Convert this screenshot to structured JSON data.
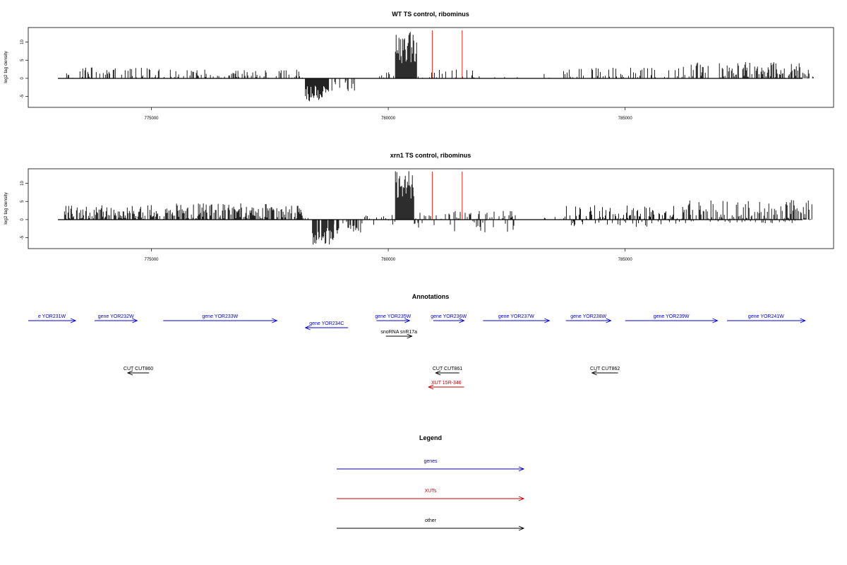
{
  "chart_data": [
    {
      "type": "bar",
      "title": "WT TS control, ribominus",
      "ylabel": "log2 tag density",
      "xlabel": "",
      "xlim": [
        772400,
        789400
      ],
      "ylim": [
        -8,
        14
      ],
      "x_ticks": [
        775000,
        780000,
        785000
      ],
      "x_tick_labels": [
        "775000",
        "780000",
        "785000"
      ],
      "y_ticks": [
        -5,
        0,
        5,
        10
      ],
      "y_tick_labels": [
        "-5",
        "0",
        "5",
        "10"
      ],
      "grid": false,
      "bar_color": "#000000",
      "markers": [
        {
          "x": 780930,
          "color": "#e8463c"
        },
        {
          "x": 781560,
          "color": "#e8463c"
        }
      ],
      "segments": [
        {
          "start": 773150,
          "end": 775500,
          "min": 0,
          "max": 3,
          "density": 0.35,
          "seed": 1
        },
        {
          "start": 775500,
          "end": 777500,
          "min": 0,
          "max": 2.5,
          "density": 0.35,
          "seed": 2
        },
        {
          "start": 777500,
          "end": 778200,
          "min": 0,
          "max": 2.5,
          "density": 0.3,
          "seed": 3
        },
        {
          "start": 778250,
          "end": 778750,
          "min": -6.5,
          "max": -2,
          "density": 0.95,
          "seed": 4
        },
        {
          "start": 778750,
          "end": 779300,
          "min": -3.5,
          "max": -0.5,
          "density": 0.4,
          "seed": 5
        },
        {
          "start": 779800,
          "end": 780150,
          "min": 0,
          "max": 2,
          "density": 0.3,
          "seed": 6
        },
        {
          "start": 780150,
          "end": 780600,
          "min": 4,
          "max": 13.5,
          "density": 1.0,
          "seed": 7
        },
        {
          "start": 780600,
          "end": 781800,
          "min": 0,
          "max": 2.5,
          "density": 0.25,
          "seed": 8
        },
        {
          "start": 781800,
          "end": 783700,
          "min": 0,
          "max": 1.5,
          "density": 0.08,
          "seed": 9
        },
        {
          "start": 783700,
          "end": 786200,
          "min": 0,
          "max": 3,
          "density": 0.35,
          "seed": 10
        },
        {
          "start": 786200,
          "end": 789000,
          "min": 0,
          "max": 4.5,
          "density": 0.6,
          "seed": 11
        }
      ]
    },
    {
      "type": "bar",
      "title": "xrn1 TS control, ribominus",
      "ylabel": "log2 tag density",
      "xlabel": "",
      "xlim": [
        772400,
        789400
      ],
      "ylim": [
        -8,
        14
      ],
      "x_ticks": [
        775000,
        780000,
        785000
      ],
      "x_tick_labels": [
        "775000",
        "780000",
        "785000"
      ],
      "y_ticks": [
        -5,
        0,
        5,
        10
      ],
      "y_tick_labels": [
        "-5",
        "0",
        "5",
        "10"
      ],
      "grid": false,
      "bar_color": "#000000",
      "markers": [
        {
          "x": 780930,
          "color": "#e8463c"
        },
        {
          "x": 781560,
          "color": "#e8463c"
        }
      ],
      "segments": [
        {
          "start": 773150,
          "end": 775500,
          "min": 0,
          "max": 4,
          "density": 0.7,
          "seed": 21
        },
        {
          "start": 775500,
          "end": 778200,
          "min": 0,
          "max": 4.5,
          "density": 0.75,
          "seed": 22
        },
        {
          "start": 778200,
          "end": 778400,
          "min": -0.5,
          "max": 0.5,
          "density": 0.2,
          "seed": 23
        },
        {
          "start": 778400,
          "end": 778850,
          "min": -7,
          "max": -2,
          "density": 0.95,
          "seed": 24
        },
        {
          "start": 778850,
          "end": 779500,
          "min": -4,
          "max": -0.5,
          "density": 0.5,
          "seed": 25
        },
        {
          "start": 779500,
          "end": 780150,
          "min": -1.5,
          "max": 1.5,
          "density": 0.3,
          "seed": 26
        },
        {
          "start": 780150,
          "end": 780550,
          "min": 4,
          "max": 13.5,
          "density": 1.0,
          "seed": 27
        },
        {
          "start": 780550,
          "end": 782700,
          "min": -3.5,
          "max": 2.5,
          "density": 0.45,
          "seed": 28
        },
        {
          "start": 782700,
          "end": 783700,
          "min": 0,
          "max": 1.5,
          "density": 0.1,
          "seed": 29
        },
        {
          "start": 783700,
          "end": 786200,
          "min": -2,
          "max": 4,
          "density": 0.6,
          "seed": 30
        },
        {
          "start": 786200,
          "end": 789000,
          "min": -1,
          "max": 5.5,
          "density": 0.8,
          "seed": 31
        }
      ]
    }
  ],
  "annotations": {
    "title": "Annotations",
    "colors": {
      "gene": "#0000cc",
      "xut": "#cc0000",
      "other": "#000000"
    },
    "features": [
      {
        "label": "e YOR231W",
        "kind": "gene",
        "dir": "right",
        "start": 772400,
        "end": 773400,
        "row": 0
      },
      {
        "label": "gene YOR232W",
        "kind": "gene",
        "dir": "right",
        "start": 773800,
        "end": 774700,
        "row": 0
      },
      {
        "label": "gene YOR233W",
        "kind": "gene",
        "dir": "right",
        "start": 775250,
        "end": 777650,
        "row": 0
      },
      {
        "label": "gene YOR234C",
        "kind": "gene",
        "dir": "left",
        "start": 778250,
        "end": 779150,
        "row": 1
      },
      {
        "label": "gene YOR235W",
        "kind": "gene",
        "dir": "right",
        "start": 779750,
        "end": 780450,
        "row": 0
      },
      {
        "label": "snoRNA snR17a",
        "kind": "other",
        "dir": "right",
        "start": 779950,
        "end": 780500,
        "row": 2
      },
      {
        "label": "gene YOR236W",
        "kind": "gene",
        "dir": "right",
        "start": 780950,
        "end": 781600,
        "row": 0
      },
      {
        "label": "gene YOR237W",
        "kind": "gene",
        "dir": "right",
        "start": 782000,
        "end": 783400,
        "row": 0
      },
      {
        "label": "gene YOR238W",
        "kind": "gene",
        "dir": "right",
        "start": 783750,
        "end": 784700,
        "row": 0
      },
      {
        "label": "gene YOR239W",
        "kind": "gene",
        "dir": "right",
        "start": 785000,
        "end": 786950,
        "row": 0
      },
      {
        "label": "gene YOR241W",
        "kind": "gene",
        "dir": "right",
        "start": 787150,
        "end": 788800,
        "row": 0
      },
      {
        "label": "CUT CUT860",
        "kind": "other",
        "dir": "left",
        "start": 774500,
        "end": 774950,
        "row": 3
      },
      {
        "label": "CUT CUT861",
        "kind": "other",
        "dir": "left",
        "start": 781000,
        "end": 781500,
        "row": 3
      },
      {
        "label": "CUT CUT862",
        "kind": "other",
        "dir": "left",
        "start": 784300,
        "end": 784850,
        "row": 3
      },
      {
        "label": "XUT 15R-346",
        "kind": "xut",
        "dir": "left",
        "start": 780850,
        "end": 781600,
        "row": 4
      }
    ]
  },
  "legend": {
    "title": "Legend",
    "items": [
      {
        "label": "genes",
        "kind": "gene"
      },
      {
        "label": "XUTs",
        "kind": "xut"
      },
      {
        "label": "other",
        "kind": "other"
      }
    ]
  }
}
